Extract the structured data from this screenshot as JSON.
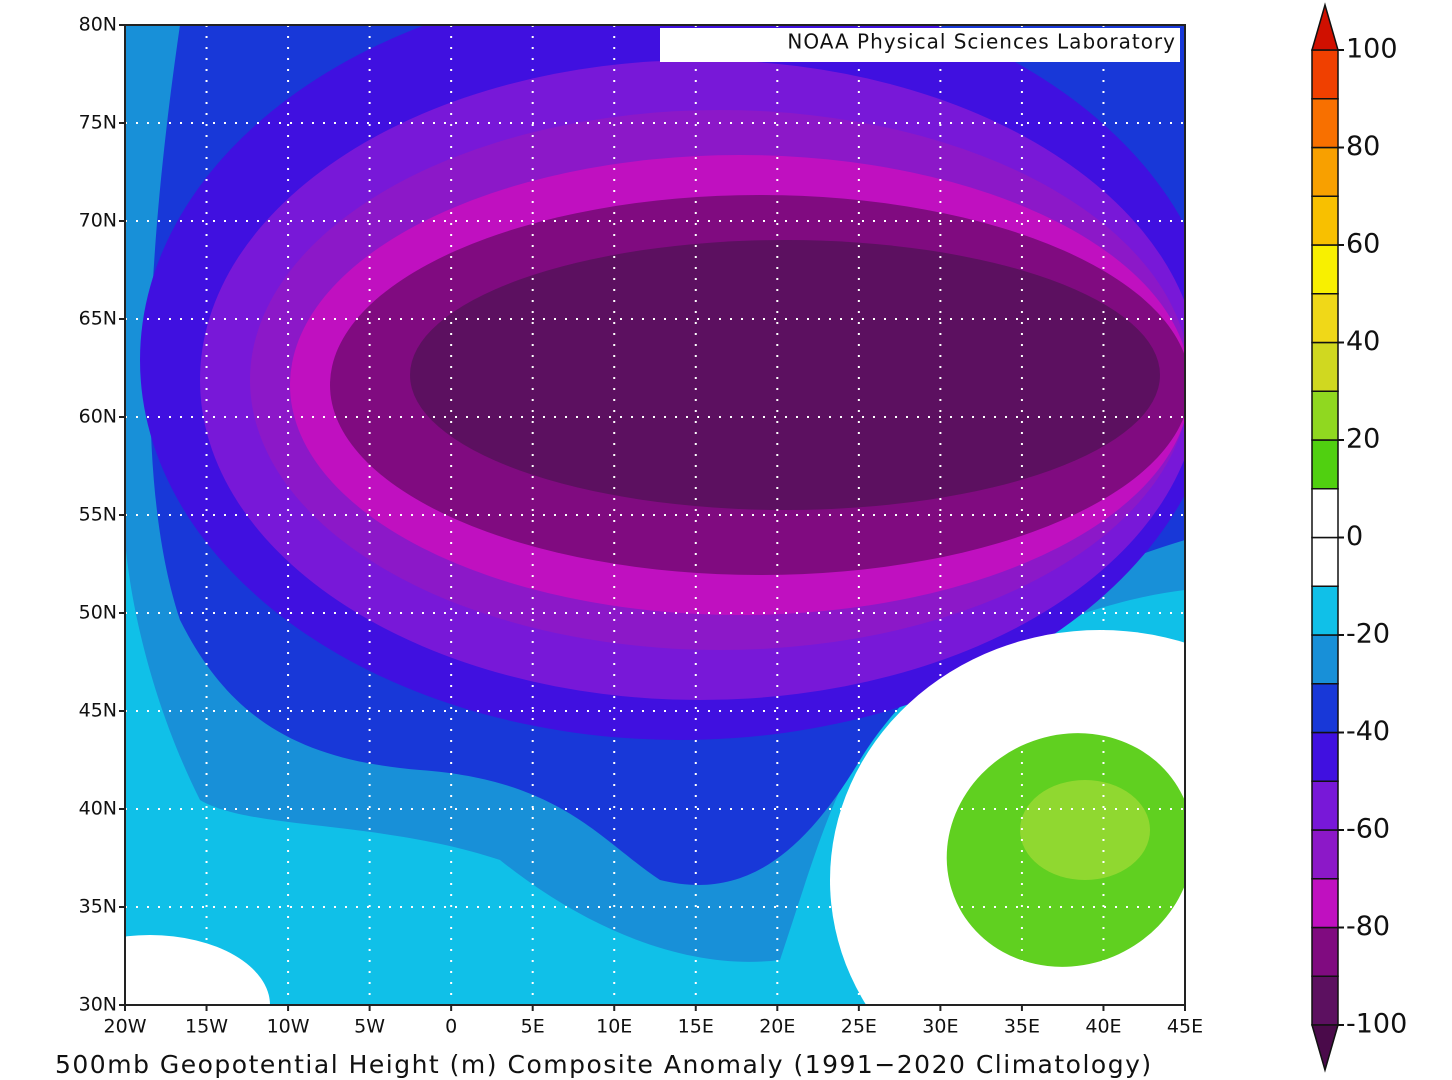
{
  "map": {
    "credit": "NOAA Physical Sciences Laboratory",
    "caption": "500mb Geopotential Height (m) Composite Anomaly (1991−2020 Climatology)",
    "lat_lim": [
      30,
      80
    ],
    "lon_lim": [
      -20,
      45
    ],
    "lat_ticks": [
      {
        "value": 30,
        "label": "30N"
      },
      {
        "value": 35,
        "label": "35N"
      },
      {
        "value": 40,
        "label": "40N"
      },
      {
        "value": 45,
        "label": "45N"
      },
      {
        "value": 50,
        "label": "50N"
      },
      {
        "value": 55,
        "label": "55N"
      },
      {
        "value": 60,
        "label": "60N"
      },
      {
        "value": 65,
        "label": "65N"
      },
      {
        "value": 70,
        "label": "70N"
      },
      {
        "value": 75,
        "label": "75N"
      },
      {
        "value": 80,
        "label": "80N"
      }
    ],
    "lon_ticks": [
      {
        "value": -20,
        "label": "20W"
      },
      {
        "value": -15,
        "label": "15W"
      },
      {
        "value": -10,
        "label": "10W"
      },
      {
        "value": -5,
        "label": "5W"
      },
      0,
      {
        "value": 5,
        "label": "5E"
      },
      {
        "value": 10,
        "label": "10E"
      },
      {
        "value": 15,
        "label": "15E"
      },
      {
        "value": 20,
        "label": "20E"
      },
      {
        "value": 25,
        "label": "25E"
      },
      {
        "value": 30,
        "label": "30E"
      },
      {
        "value": 35,
        "label": "35E"
      },
      {
        "value": 40,
        "label": "40E"
      },
      {
        "value": 45,
        "label": "45E"
      }
    ]
  },
  "colorbar": {
    "levels": [
      -100,
      -90,
      -80,
      -70,
      -60,
      -50,
      -40,
      -30,
      -20,
      -10,
      0,
      10,
      20,
      30,
      40,
      50,
      60,
      70,
      80,
      90,
      100
    ],
    "colors": [
      "#5c1060",
      "#800b80",
      "#c010c0",
      "#8c18c8",
      "#7818d8",
      "#4010e0",
      "#1838d8",
      "#1890d8",
      "#10c0e8",
      "#ffffff",
      "#ffffff",
      "#50d010",
      "#90d820",
      "#d0d820",
      "#f0d818",
      "#f8f000",
      "#f8c000",
      "#f8a000",
      "#f87000",
      "#f04000"
    ],
    "under_color": "#4a0a4a",
    "over_color": "#d01000",
    "ticks": [
      -100,
      -80,
      -60,
      -40,
      -20,
      0,
      20,
      40,
      60,
      80,
      100
    ]
  }
}
